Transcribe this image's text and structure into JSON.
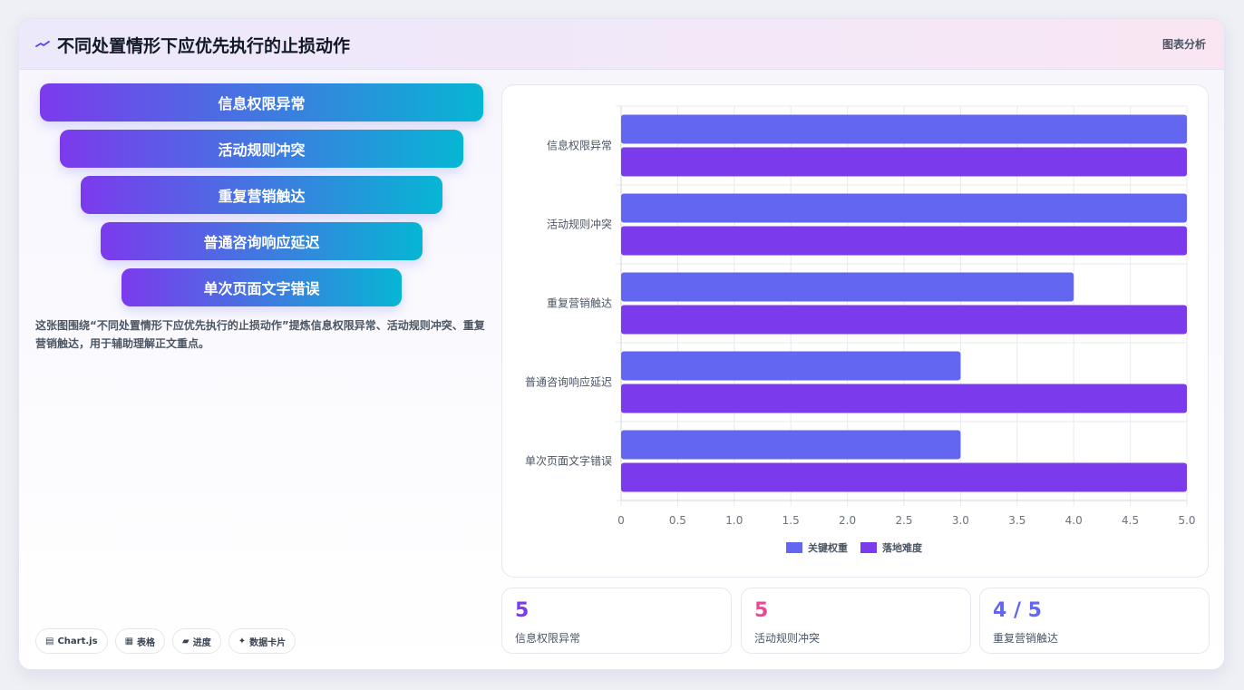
{
  "header": {
    "title": "不同处置情形下应优先执行的止损动作",
    "tag": "图表分析",
    "logo_icon": "spark-icon"
  },
  "funnel": [
    "信息权限异常",
    "活动规则冲突",
    "重复营销触达",
    "普通咨询响应延迟",
    "单次页面文字错误"
  ],
  "description": "这张图围绕“不同处置情形下应优先执行的止损动作”提炼信息权限异常、活动规则冲突、重复营销触达，用于辅助理解正文重点。",
  "pills": [
    {
      "icon": "▤",
      "label": "Chart.js"
    },
    {
      "icon": "▦",
      "label": "表格"
    },
    {
      "icon": "▰",
      "label": "进度"
    },
    {
      "icon": "✦",
      "label": "数据卡片"
    }
  ],
  "chart_data": {
    "type": "bar",
    "orientation": "horizontal",
    "categories": [
      "信息权限异常",
      "活动规则冲突",
      "重复营销触达",
      "普通咨询响应延迟",
      "单次页面文字错误"
    ],
    "series": [
      {
        "name": "关键权重",
        "values": [
          5,
          5,
          4,
          3,
          3
        ],
        "color": "#6366f1"
      },
      {
        "name": "落地难度",
        "values": [
          5,
          5,
          5,
          5,
          5
        ],
        "color": "#7c3aed"
      }
    ],
    "xlim": [
      0,
      5
    ],
    "xticks": [
      "0",
      "0.5",
      "1.0",
      "1.5",
      "2.0",
      "2.5",
      "3.0",
      "3.5",
      "4.0",
      "4.5",
      "5.0"
    ],
    "grid": true,
    "legend": "bottom"
  },
  "stats": [
    {
      "value": "5",
      "label": "信息权限异常"
    },
    {
      "value": "5",
      "label": "活动规则冲突"
    },
    {
      "value": "4 / 5",
      "label": "重复营销触达"
    }
  ]
}
